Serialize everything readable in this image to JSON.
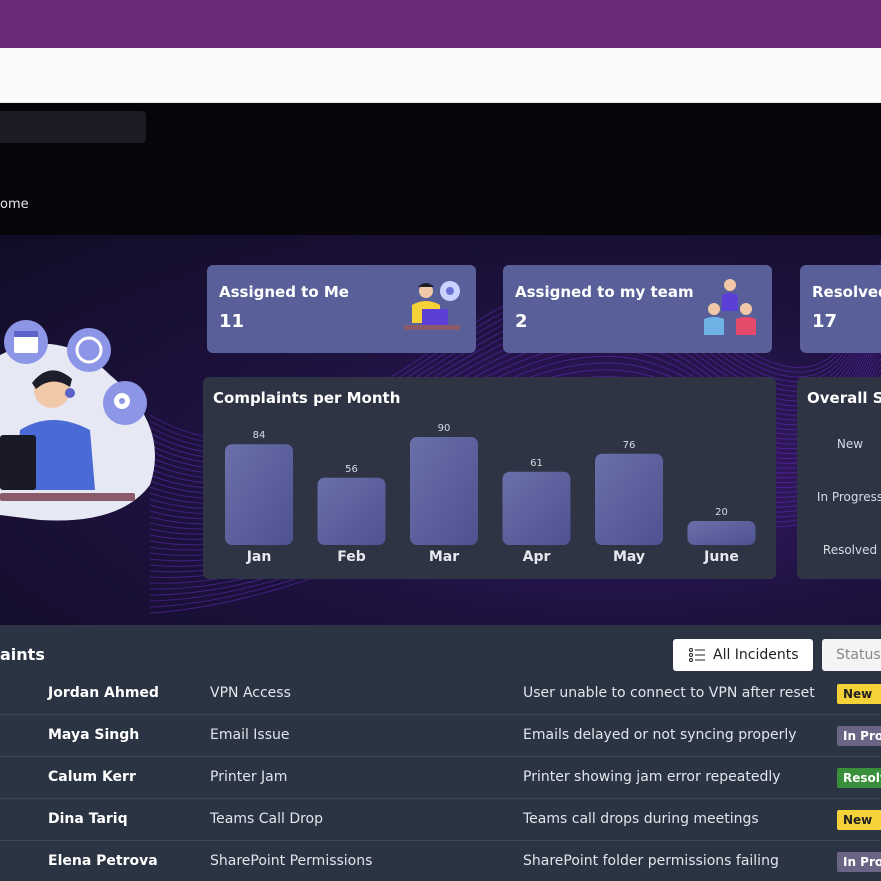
{
  "breadcrumb": "ome",
  "stats": [
    {
      "label": "Assigned to Me",
      "value": "11"
    },
    {
      "label": "Assigned to my team",
      "value": "2"
    },
    {
      "label": "Resolved",
      "value": "17"
    }
  ],
  "chart_data": {
    "type": "bar",
    "title": "Complaints per Month",
    "categories": [
      "Jan",
      "Feb",
      "Mar",
      "Apr",
      "May",
      "June"
    ],
    "values": [
      84,
      56,
      90,
      61,
      76,
      20
    ],
    "xlabel": "",
    "ylabel": "",
    "grid": false
  },
  "overall": {
    "title": "Overall St",
    "statuses": [
      "New",
      "In Progress",
      "Resolved"
    ]
  },
  "complaints": {
    "title": "aints",
    "all_incidents_label": "All Incidents",
    "status_label": "Status",
    "rows": [
      {
        "name": "Jordan Ahmed",
        "category": "VPN Access",
        "description": "User unable to connect to VPN after reset",
        "status": "New",
        "kind": "new"
      },
      {
        "name": "Maya Singh",
        "category": "Email Issue",
        "description": "Emails delayed or not syncing properly",
        "status": "In Prog",
        "kind": "prog"
      },
      {
        "name": "Calum Kerr",
        "category": "Printer Jam",
        "description": "Printer showing jam error repeatedly",
        "status": "Resolv",
        "kind": "res"
      },
      {
        "name": "Dina Tariq",
        "category": "Teams Call Drop",
        "description": "Teams call drops during meetings",
        "status": "New",
        "kind": "new"
      },
      {
        "name": "Elena Petrova",
        "category": "SharePoint Permissions",
        "description": "SharePoint folder permissions failing",
        "status": "In Prog",
        "kind": "prog"
      }
    ]
  }
}
